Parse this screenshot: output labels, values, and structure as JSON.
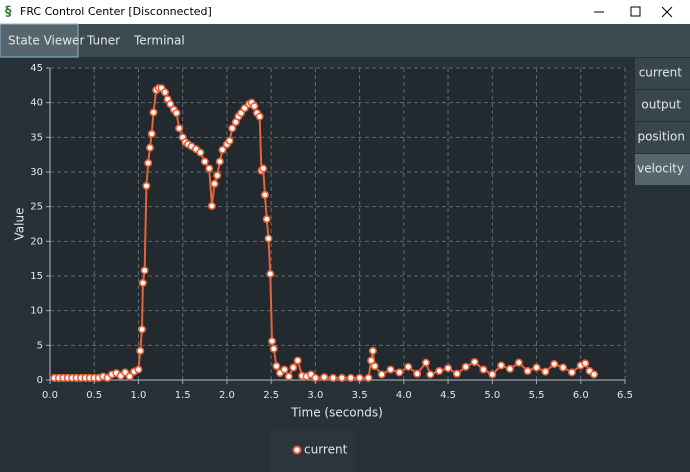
{
  "window": {
    "title": "FRC Control Center [Disconnected]"
  },
  "tabs": [
    "State Viewer",
    "Tuner",
    "Terminal"
  ],
  "side_buttons": [
    "current",
    "output",
    "position",
    "velocity"
  ],
  "chart_data": {
    "type": "line",
    "xlabel": "Time (seconds)",
    "ylabel": "Value",
    "x": [
      0.05,
      0.1,
      0.15,
      0.2,
      0.25,
      0.3,
      0.35,
      0.4,
      0.45,
      0.5,
      0.55,
      0.6,
      0.65,
      0.7,
      0.75,
      0.8,
      0.85,
      0.9,
      0.95,
      1.0,
      1.02,
      1.04,
      1.05,
      1.07,
      1.09,
      1.11,
      1.13,
      1.15,
      1.17,
      1.2,
      1.23,
      1.26,
      1.3,
      1.33,
      1.36,
      1.4,
      1.43,
      1.46,
      1.5,
      1.53,
      1.56,
      1.6,
      1.65,
      1.7,
      1.75,
      1.8,
      1.83,
      1.86,
      1.89,
      1.92,
      1.95,
      2.0,
      2.03,
      2.06,
      2.1,
      2.13,
      2.16,
      2.2,
      2.25,
      2.28,
      2.31,
      2.34,
      2.37,
      2.39,
      2.41,
      2.43,
      2.45,
      2.47,
      2.49,
      2.51,
      2.53,
      2.56,
      2.6,
      2.65,
      2.7,
      2.75,
      2.8,
      2.85,
      2.9,
      2.95,
      3.0,
      3.1,
      3.2,
      3.3,
      3.4,
      3.5,
      3.6,
      3.63,
      3.65,
      3.67,
      3.75,
      3.85,
      3.95,
      4.05,
      4.15,
      4.25,
      4.3,
      4.4,
      4.5,
      4.6,
      4.7,
      4.8,
      4.9,
      5.0,
      5.1,
      5.2,
      5.3,
      5.4,
      5.5,
      5.6,
      5.7,
      5.8,
      5.9,
      6.0,
      6.05,
      6.1,
      6.15
    ],
    "series": [
      {
        "name": "current",
        "color": "#e8623a",
        "values": [
          0.3,
          0.3,
          0.3,
          0.3,
          0.3,
          0.3,
          0.3,
          0.3,
          0.3,
          0.3,
          0.3,
          0.5,
          0.3,
          0.8,
          1,
          0.6,
          1.1,
          0.5,
          1.2,
          1.5,
          4.2,
          7.3,
          14,
          15.8,
          28,
          31.3,
          33.5,
          35.5,
          38.6,
          41.8,
          42.1,
          42.1,
          41.5,
          40.5,
          39.8,
          39,
          38.5,
          36.3,
          35,
          34.3,
          34,
          33.7,
          33.3,
          32.8,
          31.5,
          30.5,
          25.1,
          28.3,
          29.5,
          31.5,
          33.2,
          34,
          34.5,
          36.3,
          37.2,
          38,
          38.5,
          39.2,
          39.8,
          40,
          39.5,
          38.5,
          38,
          30.2,
          30.5,
          26.7,
          23.2,
          20.4,
          15.3,
          5.6,
          4.5,
          2,
          1,
          1.5,
          0.5,
          1.8,
          2.8,
          0.6,
          0.5,
          0.8,
          0.3,
          0.4,
          0.3,
          0.3,
          0.3,
          0.3,
          0.3,
          2.8,
          4.2,
          2,
          0.8,
          1.5,
          1.1,
          1.9,
          0.9,
          2.5,
          0.8,
          1.3,
          1.7,
          0.9,
          1.9,
          2.6,
          1.5,
          0.8,
          2.1,
          1.6,
          2.5,
          1.3,
          1.8,
          1.2,
          2.3,
          1.8,
          1.1,
          2.1,
          2.4,
          1.3,
          0.8
        ]
      }
    ],
    "xlim": [
      0,
      6.5
    ],
    "xticks": [
      {
        "value": 0,
        "label": "0.0"
      },
      0.5,
      {
        "value": 1,
        "label": "1.0"
      },
      1.5,
      {
        "value": 2,
        "label": "2.0"
      },
      2.5,
      {
        "value": 3,
        "label": "3.0"
      },
      3.5,
      {
        "value": 4,
        "label": "4.0"
      },
      4.5,
      {
        "value": 5,
        "label": "5.0"
      },
      5.5,
      {
        "value": 6,
        "label": "6.0"
      },
      6.5
    ],
    "ylim": [
      0,
      45
    ],
    "yticks": [
      0,
      5,
      10,
      15,
      20,
      25,
      30,
      35,
      40,
      45
    ],
    "grid": true,
    "legend": "bottom"
  }
}
